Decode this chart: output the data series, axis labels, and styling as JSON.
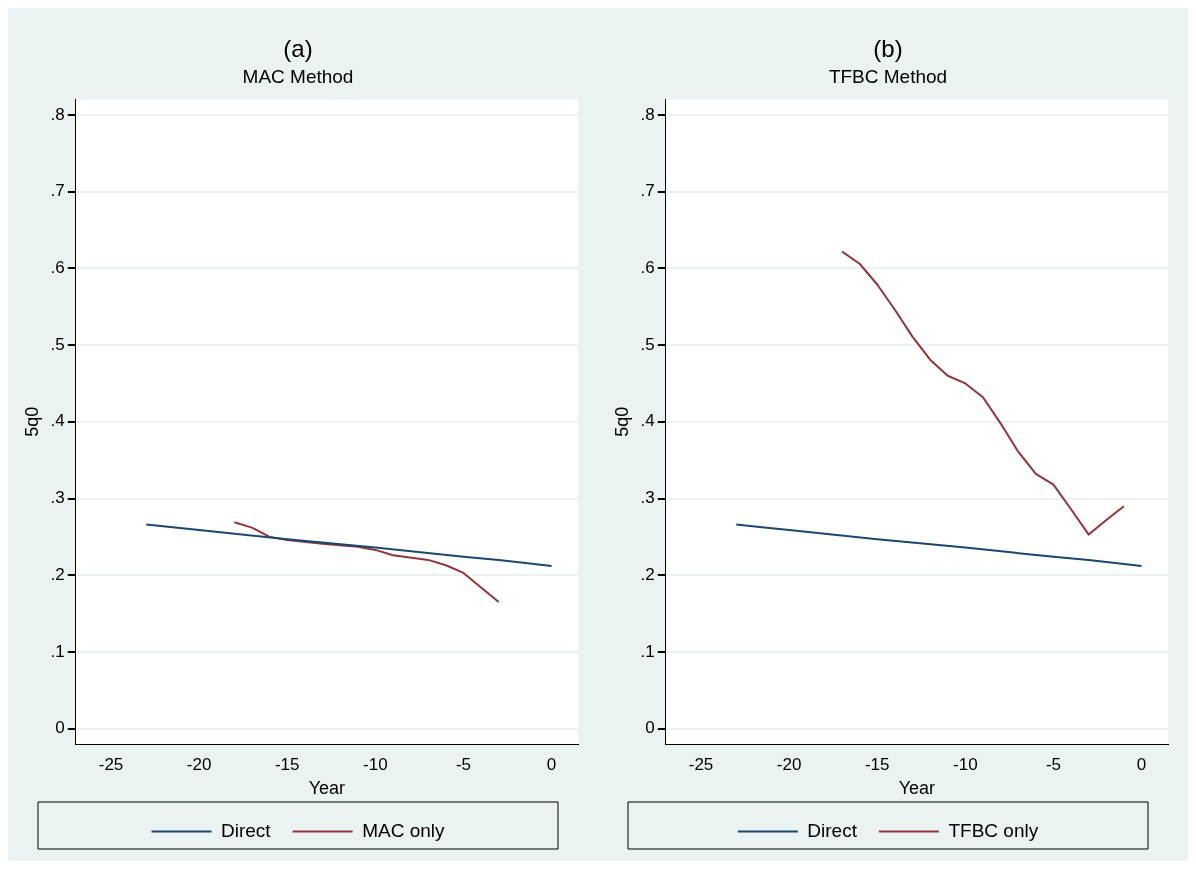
{
  "chart_data": [
    {
      "type": "line",
      "title": "(a)",
      "subtitle": "MAC Method",
      "xlabel": "Year",
      "ylabel": "5q0",
      "xlim": [
        -27,
        1.5
      ],
      "xticks": [
        -25,
        -20,
        -15,
        -10,
        -5,
        0
      ],
      "ylim": [
        -0.02,
        0.82
      ],
      "yticks": [
        {
          "value": 0,
          "label": "0"
        },
        {
          "value": 0.1,
          "label": ".1"
        },
        {
          "value": 0.2,
          "label": ".2"
        },
        {
          "value": 0.3,
          "label": ".3"
        },
        {
          "value": 0.4,
          "label": ".4"
        },
        {
          "value": 0.5,
          "label": ".5"
        },
        {
          "value": 0.6,
          "label": ".6"
        },
        {
          "value": 0.7,
          "label": ".7"
        },
        {
          "value": 0.8,
          "label": ".8"
        }
      ],
      "grid": "y",
      "legend": "bottom",
      "marker": "none",
      "line_style": "solid",
      "series": [
        {
          "name": "Direct",
          "color": "#1a476f",
          "x": [
            -23,
            -20,
            -15,
            -10,
            -5,
            -3,
            0
          ],
          "values": [
            0.266,
            0.259,
            0.247,
            0.236,
            0.224,
            0.22,
            0.212
          ]
        },
        {
          "name": "MAC only",
          "color": "#90353b",
          "x": [
            -18,
            -17,
            -16,
            -15,
            -13,
            -11,
            -10,
            -9,
            -7,
            -6,
            -5,
            -4,
            -3
          ],
          "values": [
            0.269,
            0.262,
            0.25,
            0.246,
            0.241,
            0.237,
            0.233,
            0.226,
            0.22,
            0.213,
            0.203,
            0.184,
            0.165
          ]
        }
      ]
    },
    {
      "type": "line",
      "title": "(b)",
      "subtitle": "TFBC Method",
      "xlabel": "Year",
      "ylabel": "5q0",
      "xlim": [
        -27,
        1.5
      ],
      "xticks": [
        -25,
        -20,
        -15,
        -10,
        -5,
        0
      ],
      "ylim": [
        -0.02,
        0.82
      ],
      "yticks": [
        {
          "value": 0,
          "label": "0"
        },
        {
          "value": 0.1,
          "label": ".1"
        },
        {
          "value": 0.2,
          "label": ".2"
        },
        {
          "value": 0.3,
          "label": ".3"
        },
        {
          "value": 0.4,
          "label": ".4"
        },
        {
          "value": 0.5,
          "label": ".5"
        },
        {
          "value": 0.6,
          "label": ".6"
        },
        {
          "value": 0.7,
          "label": ".7"
        },
        {
          "value": 0.8,
          "label": ".8"
        }
      ],
      "grid": "y",
      "legend": "bottom",
      "marker": "none",
      "line_style": "solid",
      "series": [
        {
          "name": "Direct",
          "color": "#1a476f",
          "x": [
            -23,
            -20,
            -15,
            -10,
            -5,
            -3,
            0
          ],
          "values": [
            0.266,
            0.259,
            0.247,
            0.236,
            0.224,
            0.22,
            0.212
          ]
        },
        {
          "name": "TFBC only",
          "color": "#90353b",
          "x": [
            -17,
            -16,
            -15,
            -14,
            -13,
            -12,
            -11,
            -10,
            -9,
            -8,
            -7,
            -6,
            -5,
            -4,
            -3,
            -2,
            -1
          ],
          "values": [
            0.622,
            0.606,
            0.579,
            0.546,
            0.511,
            0.481,
            0.46,
            0.45,
            0.432,
            0.398,
            0.361,
            0.332,
            0.318,
            0.286,
            0.253,
            0.272,
            0.29
          ]
        }
      ]
    }
  ]
}
